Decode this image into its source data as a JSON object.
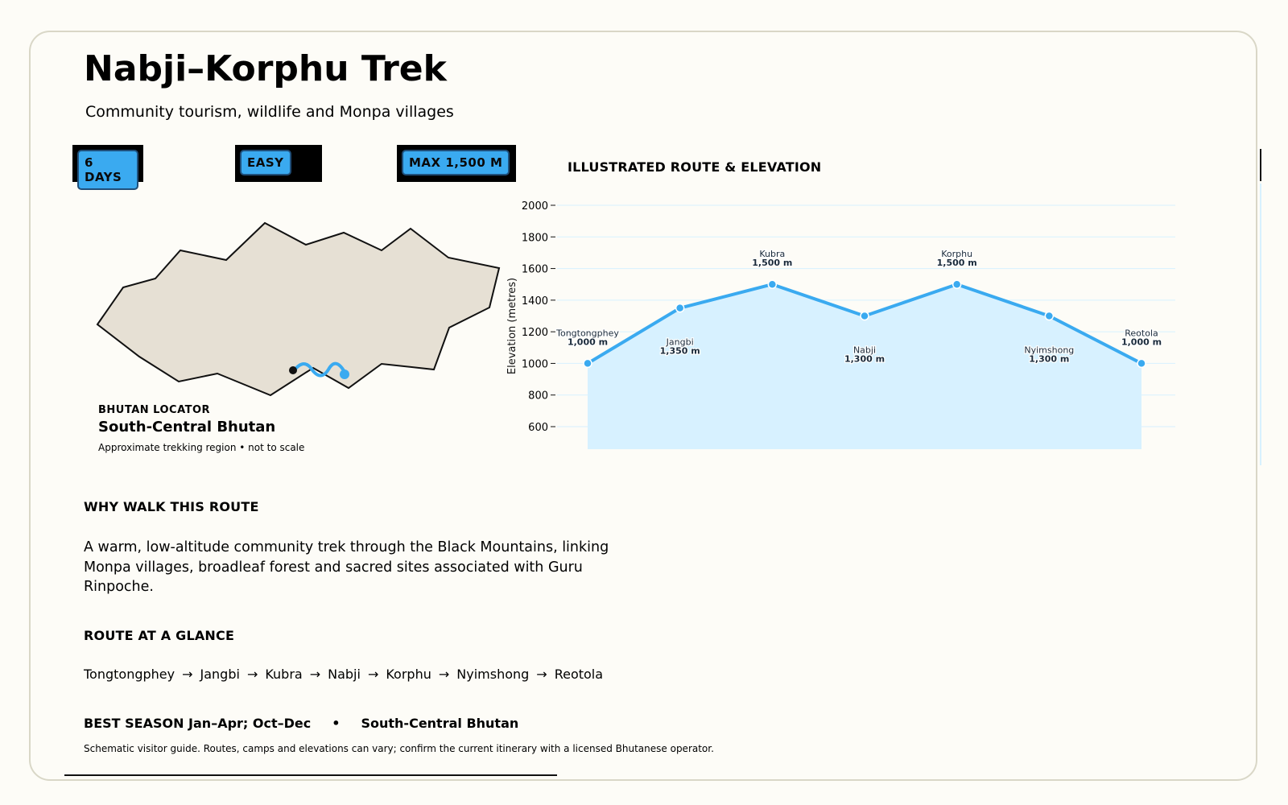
{
  "header": {
    "title": "Nabji–Korphu Trek",
    "subtitle": "Community tourism, wildlife and Monpa villages"
  },
  "badges": {
    "duration": "6 DAYS",
    "difficulty": "EASY",
    "max_altitude": "MAX 1,500 M"
  },
  "locator": {
    "kicker": "BHUTAN LOCATOR",
    "region": "South-Central Bhutan",
    "note": "Approximate trekking region • not to scale"
  },
  "colors": {
    "accent": "#3aaaf0",
    "area_fill": "#d7f1ff",
    "map_fill": "#e6e0d4",
    "background": "#fdfcf7"
  },
  "chart_heading": "ILLUSTRATED ROUTE & ELEVATION",
  "chart_data": {
    "type": "area",
    "ylabel": "Elevation (metres)",
    "ylim": [
      500,
      2050
    ],
    "yticks": [
      600,
      800,
      1000,
      1200,
      1400,
      1600,
      1800,
      2000
    ],
    "grid": true,
    "points": [
      {
        "name": "Tongtongphey",
        "elevation": 1000,
        "label": "1,000 m"
      },
      {
        "name": "Jangbi",
        "elevation": 1350,
        "label": "1,350 m"
      },
      {
        "name": "Kubra",
        "elevation": 1500,
        "label": "1,500 m"
      },
      {
        "name": "Nabji",
        "elevation": 1300,
        "label": "1,300 m"
      },
      {
        "name": "Korphu",
        "elevation": 1500,
        "label": "1,500 m"
      },
      {
        "name": "Nyimshong",
        "elevation": 1300,
        "label": "1,300 m"
      },
      {
        "name": "Reotola",
        "elevation": 1000,
        "label": "1,000 m"
      }
    ]
  },
  "why": {
    "heading": "WHY WALK THIS ROUTE",
    "body": "A warm, low-altitude community trek through the Black Mountains, linking Monpa villages, broadleaf forest and sacred sites associated with Guru Rinpoche."
  },
  "route": {
    "heading": "ROUTE AT A GLANCE",
    "stops": [
      "Tongtongphey",
      "Jangbi",
      "Kubra",
      "Nabji",
      "Korphu",
      "Nyimshong",
      "Reotola"
    ],
    "separator": "→"
  },
  "footer": {
    "season": "BEST SEASON  Jan–Apr; Oct–Dec",
    "separator": "•",
    "region": "South-Central Bhutan",
    "disclaimer": "Schematic visitor guide. Routes, camps and elevations can vary; confirm the current itinerary with a licensed Bhutanese operator."
  }
}
